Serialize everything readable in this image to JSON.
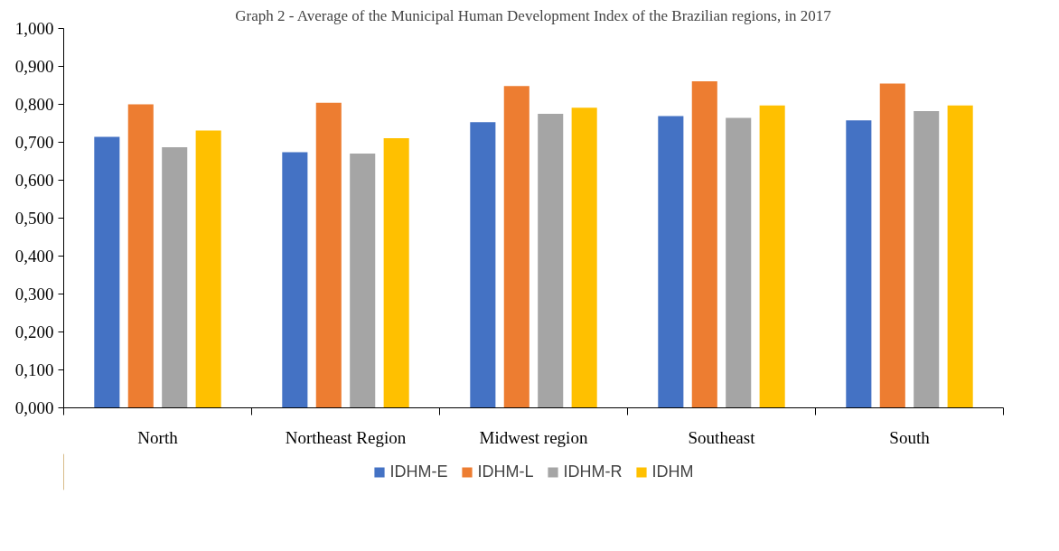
{
  "chart_data": {
    "type": "bar",
    "title": "Graph 2 - Average of the Municipal Human Development Index of the Brazilian regions, in 2017",
    "categories": [
      "North",
      "Northeast Region",
      "Midwest region",
      "Southeast",
      "South"
    ],
    "series": [
      {
        "name": "IDHM-E",
        "color": "#4472c4",
        "values": [
          0.714,
          0.674,
          0.753,
          0.769,
          0.758
        ]
      },
      {
        "name": "IDHM-L",
        "color": "#ed7d31",
        "values": [
          0.8,
          0.804,
          0.848,
          0.861,
          0.855
        ]
      },
      {
        "name": "IDHM-R",
        "color": "#a5a5a5",
        "values": [
          0.687,
          0.67,
          0.775,
          0.764,
          0.782
        ]
      },
      {
        "name": "IDHM",
        "color": "#ffc000",
        "values": [
          0.731,
          0.711,
          0.791,
          0.797,
          0.797
        ]
      }
    ],
    "ylim": [
      0,
      1
    ],
    "yticks": [
      {
        "value": 0,
        "label": "0,000"
      },
      {
        "value": 0.1,
        "label": "0,100"
      },
      {
        "value": 0.2,
        "label": "0,200"
      },
      {
        "value": 0.3,
        "label": "0,300"
      },
      {
        "value": 0.4,
        "label": "0,400"
      },
      {
        "value": 0.5,
        "label": "0,500"
      },
      {
        "value": 0.6,
        "label": "0,600"
      },
      {
        "value": 0.7,
        "label": "0,700"
      },
      {
        "value": 0.8,
        "label": "0,800"
      },
      {
        "value": 0.9,
        "label": "0,900"
      },
      {
        "value": 1,
        "label": "1,000"
      }
    ],
    "grid": false,
    "legend": "bottom"
  }
}
